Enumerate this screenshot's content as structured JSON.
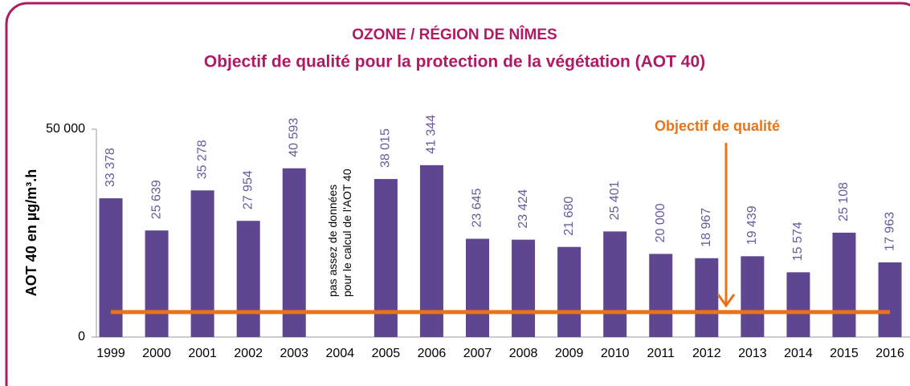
{
  "chart_data": {
    "type": "bar",
    "title": "OZONE / RÉGION DE NÎMES",
    "subtitle": "Objectif de qualité pour la protection de la végétation (AOT 40)",
    "y_label": "AOT 40 en µg/m³.h",
    "categories": [
      "1999",
      "2000",
      "2001",
      "2002",
      "2003",
      "2004",
      "2005",
      "2006",
      "2007",
      "2008",
      "2009",
      "2010",
      "2011",
      "2012",
      "2013",
      "2014",
      "2015",
      "2016"
    ],
    "values": [
      33378,
      25639,
      35278,
      27954,
      40593,
      null,
      38015,
      41344,
      23645,
      23424,
      21680,
      25401,
      20000,
      18967,
      19439,
      15574,
      25108,
      17963
    ],
    "value_labels": [
      "33 378",
      "25 639",
      "35 278",
      "27 954",
      "40 593",
      null,
      "38 015",
      "41 344",
      "23 645",
      "23 424",
      "21 680",
      "25 401",
      "20 000",
      "18 967",
      "19 439",
      "15 574",
      "25 108",
      "17 963"
    ],
    "color": "#5e4690",
    "ylim": [
      0,
      50000
    ],
    "yticks": [
      0,
      {
        "value": 50000,
        "label": "50 000"
      }
    ],
    "target": {
      "value": 6000,
      "label": "Objectif de qualité",
      "color": "#e8731a"
    },
    "annotations": [
      "pas assez de données",
      "pour le calcul de l'AOT 40"
    ]
  }
}
